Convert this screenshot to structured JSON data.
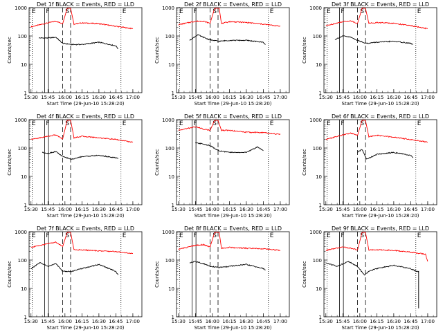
{
  "colors": {
    "events": "#000000",
    "lld": "#ff0000",
    "axes": "#000000",
    "background": "#ffffff"
  },
  "chart_data": [
    {
      "type": "line",
      "title": "Det 1f BLACK = Events, RED = LLD",
      "xlabel": "Start Time (29-Jun-10 15:28:20)",
      "ylabel": "Counts/sec",
      "x_ticks": [
        "15:30",
        "15:45",
        "16:00",
        "16:15",
        "16:30",
        "16:45",
        "17:00"
      ],
      "y_ticks": [
        "1",
        "10",
        "100",
        "1000"
      ],
      "y_scale": "log",
      "ylim": [
        1,
        1000
      ],
      "markers": {
        "E_start": "E",
        "F": "F",
        "S": "S",
        "E_end": "E"
      },
      "series": [
        {
          "color": "red",
          "x": [
            "15:30",
            "15:45",
            "15:52",
            "15:58",
            "16:02",
            "16:05",
            "16:08",
            "16:15",
            "16:30",
            "16:45",
            "17:00"
          ],
          "y": [
            210,
            290,
            330,
            270,
            950,
            950,
            260,
            290,
            270,
            220,
            180
          ]
        },
        {
          "color": "black",
          "x": [
            "15:37",
            "15:45",
            "15:52",
            "15:58",
            "16:06",
            "16:15",
            "16:30",
            "16:45",
            "16:47"
          ],
          "y": [
            85,
            85,
            90,
            55,
            50,
            50,
            60,
            45,
            35
          ]
        }
      ]
    },
    {
      "type": "line",
      "title": "Det 2f BLACK = Events, RED = LLD",
      "xlabel": "Start Time (29-Jun-10 15:28:20)",
      "ylabel": "Counts/sec",
      "x_ticks": [
        "15:30",
        "15:45",
        "16:00",
        "16:15",
        "16:30",
        "16:45",
        "17:00"
      ],
      "y_ticks": [
        "1",
        "10",
        "100",
        "1000"
      ],
      "y_scale": "log",
      "ylim": [
        1,
        1000
      ],
      "markers": {
        "E_start": "E",
        "F": "F",
        "S": "S",
        "E_end": "E"
      },
      "series": [
        {
          "color": "red",
          "x": [
            "15:30",
            "15:45",
            "15:52",
            "15:58",
            "16:02",
            "16:06",
            "16:08",
            "16:15",
            "16:30",
            "16:45",
            "17:00"
          ],
          "y": [
            250,
            330,
            330,
            280,
            950,
            950,
            270,
            320,
            300,
            260,
            220
          ]
        },
        {
          "color": "black",
          "x": [
            "15:40",
            "15:47",
            "15:55",
            "16:00",
            "16:06",
            "16:15",
            "16:30",
            "16:45",
            "16:47"
          ],
          "y": [
            70,
            110,
            80,
            70,
            65,
            70,
            70,
            60,
            50
          ]
        }
      ]
    },
    {
      "type": "line",
      "title": "Det 3f BLACK = Events, RED = LLD",
      "xlabel": "Start Time (29-Jun-10 15:28:20)",
      "ylabel": "Counts/sec",
      "x_ticks": [
        "15:30",
        "15:45",
        "16:00",
        "16:15",
        "16:30",
        "16:45",
        "17:00"
      ],
      "y_ticks": [
        "1",
        "10",
        "100",
        "1000"
      ],
      "y_scale": "log",
      "ylim": [
        1,
        1000
      ],
      "markers": {
        "E_start": "E",
        "F": "F",
        "S": "S",
        "E_end": "E"
      },
      "series": [
        {
          "color": "red",
          "x": [
            "15:30",
            "15:45",
            "15:52",
            "15:58",
            "16:02",
            "16:05",
            "16:08",
            "16:15",
            "16:30",
            "16:45",
            "17:00"
          ],
          "y": [
            230,
            320,
            340,
            280,
            950,
            950,
            280,
            300,
            280,
            230,
            180
          ]
        },
        {
          "color": "black",
          "x": [
            "15:38",
            "15:45",
            "15:52",
            "15:58",
            "16:06",
            "16:15",
            "16:30",
            "16:45",
            "16:47"
          ],
          "y": [
            75,
            100,
            90,
            70,
            55,
            60,
            65,
            55,
            50
          ]
        }
      ]
    },
    {
      "type": "line",
      "title": "Det 4f BLACK = Events, RED = LLD",
      "xlabel": "Start Time (29-Jun-10 15:28:20)",
      "ylabel": "Counts/sec",
      "x_ticks": [
        "15:30",
        "15:45",
        "16:00",
        "16:15",
        "16:30",
        "16:45",
        "17:00"
      ],
      "y_ticks": [
        "1",
        "10",
        "100",
        "1000"
      ],
      "y_scale": "log",
      "ylim": [
        1,
        1000
      ],
      "markers": {
        "E_start": "E",
        "F": "F",
        "S": "S",
        "E_end": "E"
      },
      "series": [
        {
          "color": "red",
          "x": [
            "15:30",
            "15:45",
            "15:52",
            "15:58",
            "16:02",
            "16:05",
            "16:08",
            "16:15",
            "16:30",
            "16:45",
            "17:00"
          ],
          "y": [
            200,
            260,
            290,
            210,
            950,
            950,
            230,
            260,
            230,
            200,
            160
          ]
        },
        {
          "color": "black",
          "x": [
            "15:40",
            "15:45",
            "15:52",
            "15:58",
            "16:06",
            "16:15",
            "16:30",
            "16:45",
            "16:47"
          ],
          "y": [
            70,
            65,
            75,
            50,
            40,
            50,
            55,
            45,
            42
          ]
        }
      ]
    },
    {
      "type": "line",
      "title": "Det 5f BLACK = Events, RED = LLD",
      "xlabel": "Start Time (29-Jun-10 15:28:20)",
      "ylabel": "Counts/sec",
      "x_ticks": [
        "15:30",
        "15:45",
        "16:00",
        "16:15",
        "16:30",
        "16:45",
        "17:00"
      ],
      "y_ticks": [
        "1",
        "10",
        "100",
        "1000"
      ],
      "y_scale": "log",
      "ylim": [
        1,
        1000
      ],
      "markers": {
        "E_start": "E",
        "F": "F",
        "S": "S",
        "E_end": "E"
      },
      "series": [
        {
          "color": "red",
          "x": [
            "15:30",
            "15:45",
            "15:52",
            "15:58",
            "16:02",
            "16:05",
            "16:08",
            "16:15",
            "16:30",
            "16:45",
            "17:00"
          ],
          "y": [
            420,
            560,
            470,
            420,
            950,
            950,
            420,
            420,
            360,
            350,
            300
          ]
        },
        {
          "color": "black",
          "x": [
            "15:45",
            "15:52",
            "15:58",
            "16:06",
            "16:15",
            "16:30",
            "16:40",
            "16:45"
          ],
          "y": [
            150,
            140,
            120,
            80,
            70,
            70,
            110,
            80
          ]
        }
      ]
    },
    {
      "type": "line",
      "title": "Det 6f BLACK = Events, RED = LLD",
      "xlabel": "Start Time (29-Jun-10 15:28:20)",
      "ylabel": "Counts/sec",
      "x_ticks": [
        "15:30",
        "15:45",
        "16:00",
        "16:15",
        "16:30",
        "16:45",
        "17:00"
      ],
      "y_ticks": [
        "1",
        "10",
        "100",
        "1000"
      ],
      "y_scale": "log",
      "ylim": [
        1,
        1000
      ],
      "markers": {
        "E_start": "E",
        "F": "F",
        "S": "S",
        "E_end": "E"
      },
      "series": [
        {
          "color": "red",
          "x": [
            "15:30",
            "15:45",
            "15:52",
            "15:58",
            "16:02",
            "16:05",
            "16:08",
            "16:15",
            "16:30",
            "16:45",
            "17:00"
          ],
          "y": [
            200,
            290,
            330,
            280,
            950,
            950,
            250,
            280,
            240,
            200,
            160
          ]
        },
        {
          "color": "black",
          "x": [
            "15:58",
            "16:02",
            "16:06",
            "16:15",
            "16:30",
            "16:45",
            "16:47"
          ],
          "y": [
            70,
            90,
            40,
            60,
            70,
            55,
            45
          ]
        }
      ]
    },
    {
      "type": "line",
      "title": "Det 7f BLACK = Events, RED = LLD",
      "xlabel": "Start Time (29-Jun-10 15:28:20)",
      "ylabel": "Counts/sec",
      "x_ticks": [
        "15:30",
        "15:45",
        "16:00",
        "16:15",
        "16:30",
        "16:45",
        "17:00"
      ],
      "y_ticks": [
        "1",
        "10",
        "100",
        "1000"
      ],
      "y_scale": "log",
      "ylim": [
        1,
        1000
      ],
      "markers": {
        "E_start": "E",
        "F": "F",
        "S": "S",
        "E_end": "E"
      },
      "series": [
        {
          "color": "red",
          "x": [
            "15:30",
            "15:45",
            "15:52",
            "15:58",
            "16:02",
            "16:05",
            "16:08",
            "16:15",
            "16:30",
            "16:45",
            "17:00"
          ],
          "y": [
            280,
            380,
            430,
            300,
            950,
            950,
            230,
            230,
            210,
            200,
            170
          ]
        },
        {
          "color": "black",
          "x": [
            "15:30",
            "15:38",
            "15:45",
            "15:52",
            "15:58",
            "16:06",
            "16:15",
            "16:30",
            "16:45",
            "16:47"
          ],
          "y": [
            50,
            80,
            60,
            75,
            40,
            40,
            50,
            70,
            40,
            30
          ]
        }
      ]
    },
    {
      "type": "line",
      "title": "Det 8f BLACK = Events, RED = LLD",
      "xlabel": "Start Time (29-Jun-10 15:28:20)",
      "ylabel": "Counts/sec",
      "x_ticks": [
        "15:30",
        "15:45",
        "16:00",
        "16:15",
        "16:30",
        "16:45",
        "17:00"
      ],
      "y_ticks": [
        "1",
        "10",
        "100",
        "1000"
      ],
      "y_scale": "log",
      "ylim": [
        1,
        1000
      ],
      "markers": {
        "E_start": "E",
        "F": "F",
        "S": "S",
        "E_end": "E"
      },
      "series": [
        {
          "color": "red",
          "x": [
            "15:30",
            "15:45",
            "15:52",
            "15:58",
            "16:02",
            "16:06",
            "16:08",
            "16:15",
            "16:30",
            "16:45",
            "17:00"
          ],
          "y": [
            240,
            330,
            350,
            290,
            950,
            950,
            260,
            280,
            260,
            250,
            220
          ]
        },
        {
          "color": "black",
          "x": [
            "15:40",
            "15:45",
            "15:52",
            "15:58",
            "16:06",
            "16:15",
            "16:30",
            "16:45",
            "16:47"
          ],
          "y": [
            80,
            90,
            75,
            60,
            55,
            60,
            70,
            50,
            45
          ]
        }
      ]
    },
    {
      "type": "line",
      "title": "Det 9f BLACK = Events, RED = LLD",
      "xlabel": "Start Time (29-Jun-10 15:28:20)",
      "ylabel": "Counts/sec",
      "x_ticks": [
        "15:30",
        "15:45",
        "16:00",
        "16:15",
        "16:30",
        "16:45",
        "17:00"
      ],
      "y_ticks": [
        "1",
        "10",
        "100",
        "1000"
      ],
      "y_scale": "log",
      "ylim": [
        1,
        1000
      ],
      "markers": {
        "E_start": "E",
        "F": "F",
        "S": "S",
        "E_end": "E"
      },
      "series": [
        {
          "color": "red",
          "x": [
            "15:30",
            "15:45",
            "15:52",
            "15:58",
            "16:02",
            "16:05",
            "16:08",
            "16:15",
            "16:30",
            "16:45",
            "16:58",
            "17:00"
          ],
          "y": [
            220,
            290,
            260,
            230,
            950,
            950,
            230,
            230,
            220,
            190,
            160,
            90
          ]
        },
        {
          "color": "black",
          "x": [
            "15:30",
            "15:40",
            "15:50",
            "15:58",
            "16:04",
            "16:08",
            "16:15",
            "16:30",
            "16:45",
            "16:50",
            "16:52",
            "16:52"
          ],
          "y": [
            80,
            60,
            90,
            60,
            30,
            40,
            50,
            65,
            50,
            40,
            40,
            2
          ]
        }
      ]
    }
  ]
}
